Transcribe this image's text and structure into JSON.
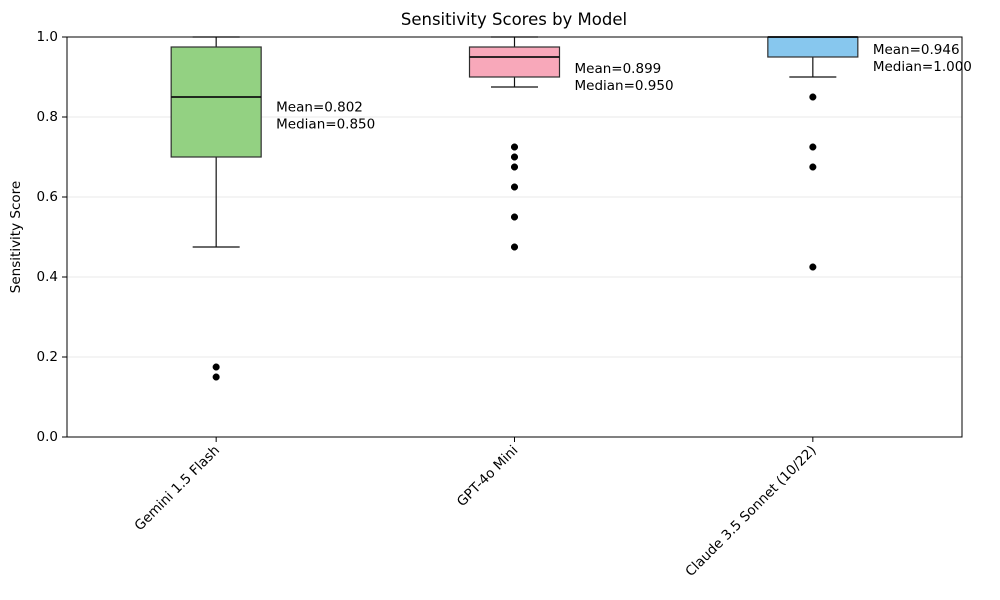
{
  "chart_data": {
    "type": "box",
    "title": "Sensitivity Scores by Model",
    "ylabel": "Sensitivity Score",
    "xlabel": "",
    "ylim": [
      0.0,
      1.0
    ],
    "yticks": [
      "0.0",
      "0.2",
      "0.4",
      "0.6",
      "0.8",
      "1.0"
    ],
    "grid": "horizontal",
    "legend": "none",
    "categories": [
      "Gemini 1.5 Flash",
      "GPT-4o Mini",
      "Claude 3.5 Sonnet (10/22)"
    ],
    "series": [
      {
        "name": "Gemini 1.5 Flash",
        "box_color": "#93d182",
        "q1": 0.7,
        "median": 0.85,
        "q3": 0.975,
        "whisker_low": 0.475,
        "whisker_high": 1.0,
        "mean": 0.802,
        "outliers": [
          0.175,
          0.15
        ],
        "annotation_lines": [
          "Mean=0.802",
          "Median=0.850"
        ]
      },
      {
        "name": "GPT-4o Mini",
        "box_color": "#f8a8ba",
        "q1": 0.9,
        "median": 0.95,
        "q3": 0.975,
        "whisker_low": 0.875,
        "whisker_high": 1.0,
        "mean": 0.899,
        "outliers": [
          0.725,
          0.7,
          0.675,
          0.625,
          0.55,
          0.475
        ],
        "annotation_lines": [
          "Mean=0.899",
          "Median=0.950"
        ]
      },
      {
        "name": "Claude 3.5 Sonnet (10/22)",
        "box_color": "#87c7ee",
        "q1": 0.95,
        "median": 1.0,
        "q3": 1.0,
        "whisker_low": 0.9,
        "whisker_high": 1.0,
        "mean": 0.946,
        "outliers": [
          0.85,
          0.725,
          0.675,
          0.425
        ],
        "annotation_lines": [
          "Mean=0.946",
          "Median=1.000"
        ]
      }
    ],
    "colors": {
      "background": "#ffffff",
      "box_edge": "#2e2e2e",
      "median_line": "#111111",
      "whisker": "#111111",
      "outlier": "#000000",
      "grid_line": "#e9e9e9",
      "spine": "#000000",
      "text": "#000000"
    }
  }
}
